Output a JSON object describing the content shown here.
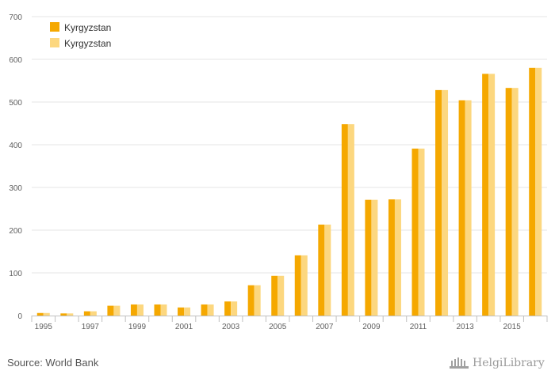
{
  "chart_data": {
    "type": "bar",
    "categories": [
      "1995",
      "1996",
      "1997",
      "1998",
      "1999",
      "2000",
      "2001",
      "2002",
      "2003",
      "2004",
      "2005",
      "2006",
      "2007",
      "2008",
      "2009",
      "2010",
      "2011",
      "2012",
      "2013",
      "2014",
      "2015",
      "2016"
    ],
    "x_tick_labels": [
      "1995",
      "1997",
      "1999",
      "2001",
      "2003",
      "2005",
      "2007",
      "2009",
      "2011",
      "2013",
      "2015"
    ],
    "series": [
      {
        "name": "Kyrgyzstan",
        "color": "#f5a800",
        "values": [
          6,
          5,
          10,
          23,
          26,
          26,
          19,
          26,
          33,
          71,
          93,
          141,
          213,
          448,
          271,
          272,
          391,
          528,
          504,
          566,
          533,
          580
        ]
      },
      {
        "name": "Kyrgyzstan",
        "color": "#fcd77f",
        "values": [
          6,
          5,
          10,
          23,
          26,
          26,
          19,
          26,
          33,
          71,
          93,
          141,
          213,
          448,
          271,
          272,
          391,
          528,
          504,
          566,
          533,
          580
        ]
      }
    ],
    "ylim": [
      0,
      700
    ],
    "yticks": [
      0,
      100,
      200,
      300,
      400,
      500,
      600,
      700
    ],
    "grid": true,
    "legend_position": "top-left"
  },
  "source_text": "Source: World Bank",
  "logo_text": "HelgiLibrary"
}
